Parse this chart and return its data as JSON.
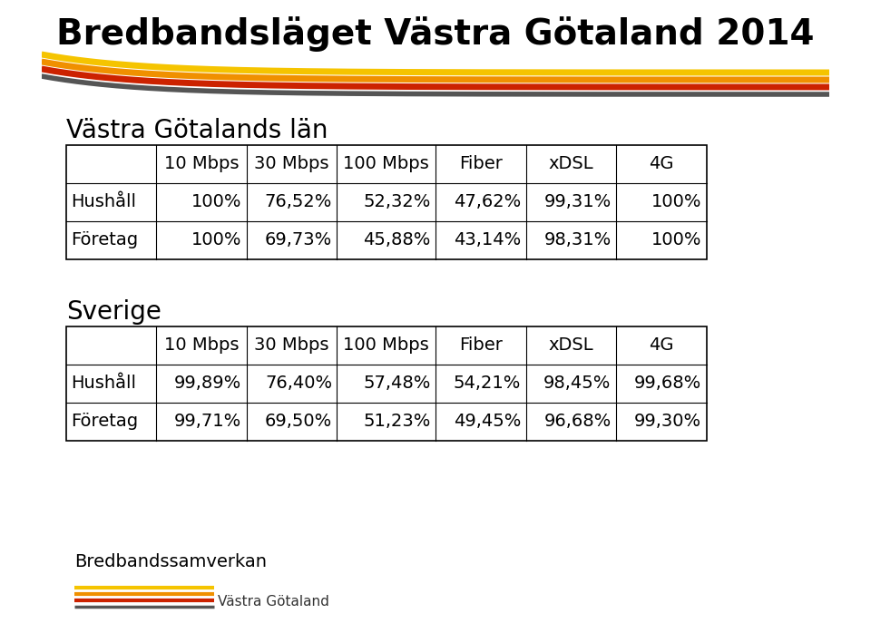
{
  "title": "Bredbandsläget Västra Götaland 2014",
  "title_fontsize": 28,
  "title_fontweight": "bold",
  "bg_color": "#ffffff",
  "section1_label": "Västra Götalands län",
  "section2_label": "Sverige",
  "col_headers": [
    "",
    "10 Mbps",
    "30 Mbps",
    "100 Mbps",
    "Fiber",
    "xDSL",
    "4G"
  ],
  "table1_rows": [
    [
      "Hushåll",
      "100%",
      "76,52%",
      "52,32%",
      "47,62%",
      "99,31%",
      "100%"
    ],
    [
      "Företag",
      "100%",
      "69,73%",
      "45,88%",
      "43,14%",
      "98,31%",
      "100%"
    ]
  ],
  "table2_rows": [
    [
      "Hushåll",
      "99,89%",
      "76,40%",
      "57,48%",
      "54,21%",
      "98,45%",
      "99,68%"
    ],
    [
      "Företag",
      "99,71%",
      "69,50%",
      "51,23%",
      "49,45%",
      "96,68%",
      "99,30%"
    ]
  ],
  "logo_text": "Bredbandssamverkan",
  "logo_subtext": "Västra Götaland",
  "table_font_size": 14,
  "section_font_size": 20,
  "stripe_colors": [
    "#f5c400",
    "#f09000",
    "#cc2200",
    "#555555"
  ],
  "logo_stripe_colors": [
    "#f5c400",
    "#f09000",
    "#cc2200",
    "#555555"
  ]
}
